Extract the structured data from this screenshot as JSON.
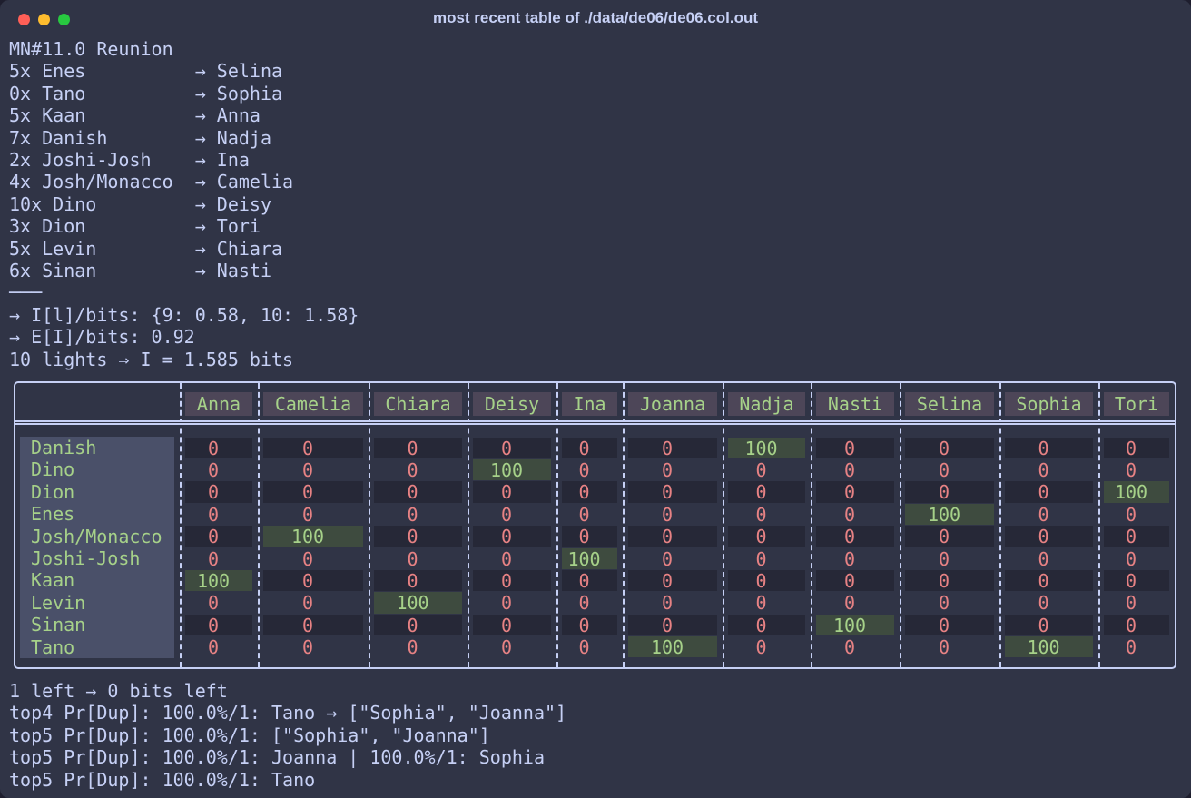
{
  "window": {
    "title": "most recent table of ./data/de06/de06.col.out"
  },
  "output": {
    "lines": [
      "MN#11.0 Reunion",
      "5x Enes          → Selina",
      "0x Tano          → Sophia",
      "5x Kaan          → Anna",
      "7x Danish        → Nadja",
      "2x Joshi-Josh    → Ina",
      "4x Josh/Monacco  → Camelia",
      "10x Dino         → Deisy",
      "3x Dion          → Tori",
      "5x Levin         → Chiara",
      "6x Sinan         → Nasti",
      "───",
      "→ I[l]/bits: {9: 0.58, 10: 1.58}",
      "→ E[I]/bits: 0.92",
      "10 lights ⇒ I = 1.585 bits"
    ]
  },
  "table": {
    "columns": [
      "Anna",
      "Camelia",
      "Chiara",
      "Deisy",
      "Ina",
      "Joanna",
      "Nadja",
      "Nasti",
      "Selina",
      "Sophia",
      "Tori"
    ],
    "rows": [
      {
        "name": "Danish",
        "cells": [
          0,
          0,
          0,
          0,
          0,
          0,
          100,
          0,
          0,
          0,
          0
        ]
      },
      {
        "name": "Dino",
        "cells": [
          0,
          0,
          0,
          100,
          0,
          0,
          0,
          0,
          0,
          0,
          0
        ]
      },
      {
        "name": "Dion",
        "cells": [
          0,
          0,
          0,
          0,
          0,
          0,
          0,
          0,
          0,
          0,
          100
        ]
      },
      {
        "name": "Enes",
        "cells": [
          0,
          0,
          0,
          0,
          0,
          0,
          0,
          0,
          100,
          0,
          0
        ]
      },
      {
        "name": "Josh/Monacco",
        "cells": [
          0,
          100,
          0,
          0,
          0,
          0,
          0,
          0,
          0,
          0,
          0
        ]
      },
      {
        "name": "Joshi-Josh",
        "cells": [
          0,
          0,
          0,
          0,
          100,
          0,
          0,
          0,
          0,
          0,
          0
        ]
      },
      {
        "name": "Kaan",
        "cells": [
          100,
          0,
          0,
          0,
          0,
          0,
          0,
          0,
          0,
          0,
          0
        ]
      },
      {
        "name": "Levin",
        "cells": [
          0,
          0,
          100,
          0,
          0,
          0,
          0,
          0,
          0,
          0,
          0
        ]
      },
      {
        "name": "Sinan",
        "cells": [
          0,
          0,
          0,
          0,
          0,
          0,
          0,
          100,
          0,
          0,
          0
        ]
      },
      {
        "name": "Tano",
        "cells": [
          0,
          0,
          0,
          0,
          0,
          100,
          0,
          0,
          0,
          100,
          0
        ]
      }
    ]
  },
  "footer": {
    "lines": [
      "1 left → 0 bits left",
      "top4 Pr[Dup]: 100.0%/1: Tano → [\"Sophia\", \"Joanna\"]",
      "top5 Pr[Dup]: 100.0%/1: [\"Sophia\", \"Joanna\"]",
      "top5 Pr[Dup]: 100.0%/1: Joanna | 100.0%/1: Sophia",
      "top5 Pr[Dup]: 100.0%/1: Tano"
    ]
  }
}
